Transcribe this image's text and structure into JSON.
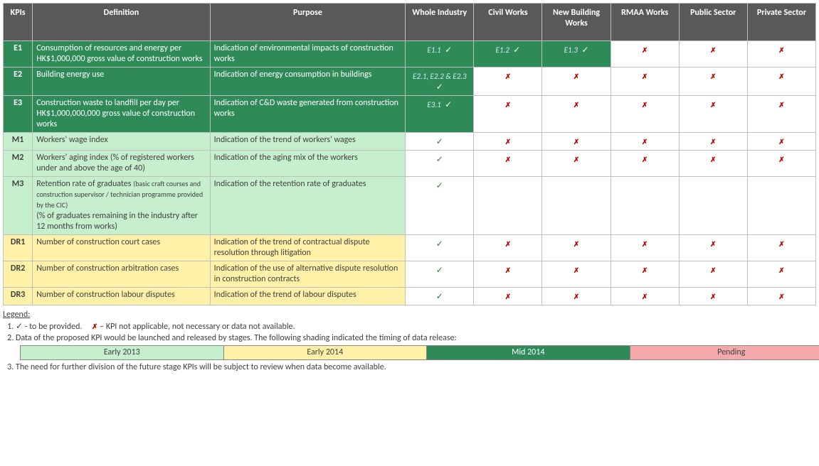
{
  "headers": [
    "KPIs",
    "Definition",
    "Purpose",
    "Whole Industry",
    "Civil Works",
    "New Building Works",
    "RMAA Works",
    "Public Sector",
    "Private Sector"
  ],
  "rows": [
    {
      "kpi": "E1",
      "group": "e",
      "definition": "Consumption of resources and energy per HK$1,000,000 gross value of construction works",
      "purpose": "Indication of environmental impacts of construction works",
      "cells": [
        {
          "type": "avail",
          "ref": "E1.1"
        },
        {
          "type": "avail",
          "ref": "E1.2"
        },
        {
          "type": "avail",
          "ref": "E1.3"
        },
        {
          "type": "na"
        },
        {
          "type": "na"
        },
        {
          "type": "na"
        }
      ]
    },
    {
      "kpi": "E2",
      "group": "e",
      "definition": "Building energy use",
      "purpose": "Indication of energy consumption in buildings",
      "cells": [
        {
          "type": "avail",
          "ref": "E2.1, E2.2 & E2.3",
          "refBelow": true
        },
        {
          "type": "na"
        },
        {
          "type": "na"
        },
        {
          "type": "na"
        },
        {
          "type": "na"
        },
        {
          "type": "na"
        }
      ]
    },
    {
      "kpi": "E3",
      "group": "e",
      "definition": "Construction waste to landfill per day per HK$1,000,000,000 gross value of construction works",
      "purpose": "Indication of C&D waste generated from construction works",
      "cells": [
        {
          "type": "avail",
          "ref": "E3.1"
        },
        {
          "type": "na"
        },
        {
          "type": "na"
        },
        {
          "type": "na"
        },
        {
          "type": "na"
        },
        {
          "type": "na"
        }
      ]
    },
    {
      "kpi": "M1",
      "group": "m",
      "definition": "Workers' wage index",
      "purpose": "Indication of the trend of workers' wages",
      "cells": [
        {
          "type": "tick"
        },
        {
          "type": "na"
        },
        {
          "type": "na"
        },
        {
          "type": "na"
        },
        {
          "type": "na"
        },
        {
          "type": "na"
        }
      ]
    },
    {
      "kpi": "M2",
      "group": "m",
      "definition": "Workers' aging index\n(% of registered workers under and above the age of 40)",
      "purpose": "Indication of the aging mix of the workers",
      "cells": [
        {
          "type": "tick"
        },
        {
          "type": "na"
        },
        {
          "type": "na"
        },
        {
          "type": "na"
        },
        {
          "type": "na"
        },
        {
          "type": "na"
        }
      ]
    },
    {
      "kpi": "M3",
      "group": "m",
      "definitionHtml": "Retention rate of graduates <span class='mini'>(basic craft courses and construction supervisor / technician programme provided by the CIC)</span><br>(% of graduates remaining in the industry after 12 months from works)",
      "purpose": "Indication of the retention rate of graduates",
      "cells": [
        {
          "type": "tick"
        },
        {
          "type": "blank"
        },
        {
          "type": "blank"
        },
        {
          "type": "blank"
        },
        {
          "type": "blank"
        },
        {
          "type": "blank"
        }
      ]
    },
    {
      "kpi": "DR1",
      "group": "dr",
      "definition": "Number of construction court cases",
      "purpose": "Indication of the trend of contractual dispute resolution through litigation",
      "cells": [
        {
          "type": "tick"
        },
        {
          "type": "na"
        },
        {
          "type": "na"
        },
        {
          "type": "na"
        },
        {
          "type": "na"
        },
        {
          "type": "na"
        }
      ]
    },
    {
      "kpi": "DR2",
      "group": "dr",
      "definition": "Number of construction arbitration cases",
      "purpose": "Indication of the use of alternative dispute resolution in construction contracts",
      "cells": [
        {
          "type": "tick"
        },
        {
          "type": "na"
        },
        {
          "type": "na"
        },
        {
          "type": "na"
        },
        {
          "type": "na"
        },
        {
          "type": "na"
        }
      ]
    },
    {
      "kpi": "DR3",
      "group": "dr",
      "definition": "Number of construction labour disputes",
      "purpose": "Indication of the trend of labour disputes",
      "cells": [
        {
          "type": "tick"
        },
        {
          "type": "na"
        },
        {
          "type": "na"
        },
        {
          "type": "na"
        },
        {
          "type": "na"
        },
        {
          "type": "na"
        }
      ]
    }
  ],
  "legend": {
    "title": "Legend:",
    "note1_a": "✓ - to be provided.",
    "note1_b": "✗ – KPI not applicable, not necessary or data not available.",
    "note2": "Data of the proposed KPI would be launched and released by stages. The following shading indicated the timing of data release:",
    "swatches": [
      "Early 2013",
      "Early 2014",
      "Mid 2014",
      "Pending"
    ],
    "note3": "The need for further division of the future stage KPIs will be subject to review when data become available."
  },
  "symbols": {
    "tick": "✓",
    "cross": "✗"
  },
  "colors": {
    "header_bg": "#595959",
    "border": "#bfbfbf",
    "group_e": "#2e8b57",
    "group_m": "#c6efce",
    "group_dr": "#fff2a8",
    "pending": "#f4aaaa",
    "cross": "#c00000",
    "tick": "#2e7d32",
    "ref": "#cfe8ff"
  }
}
